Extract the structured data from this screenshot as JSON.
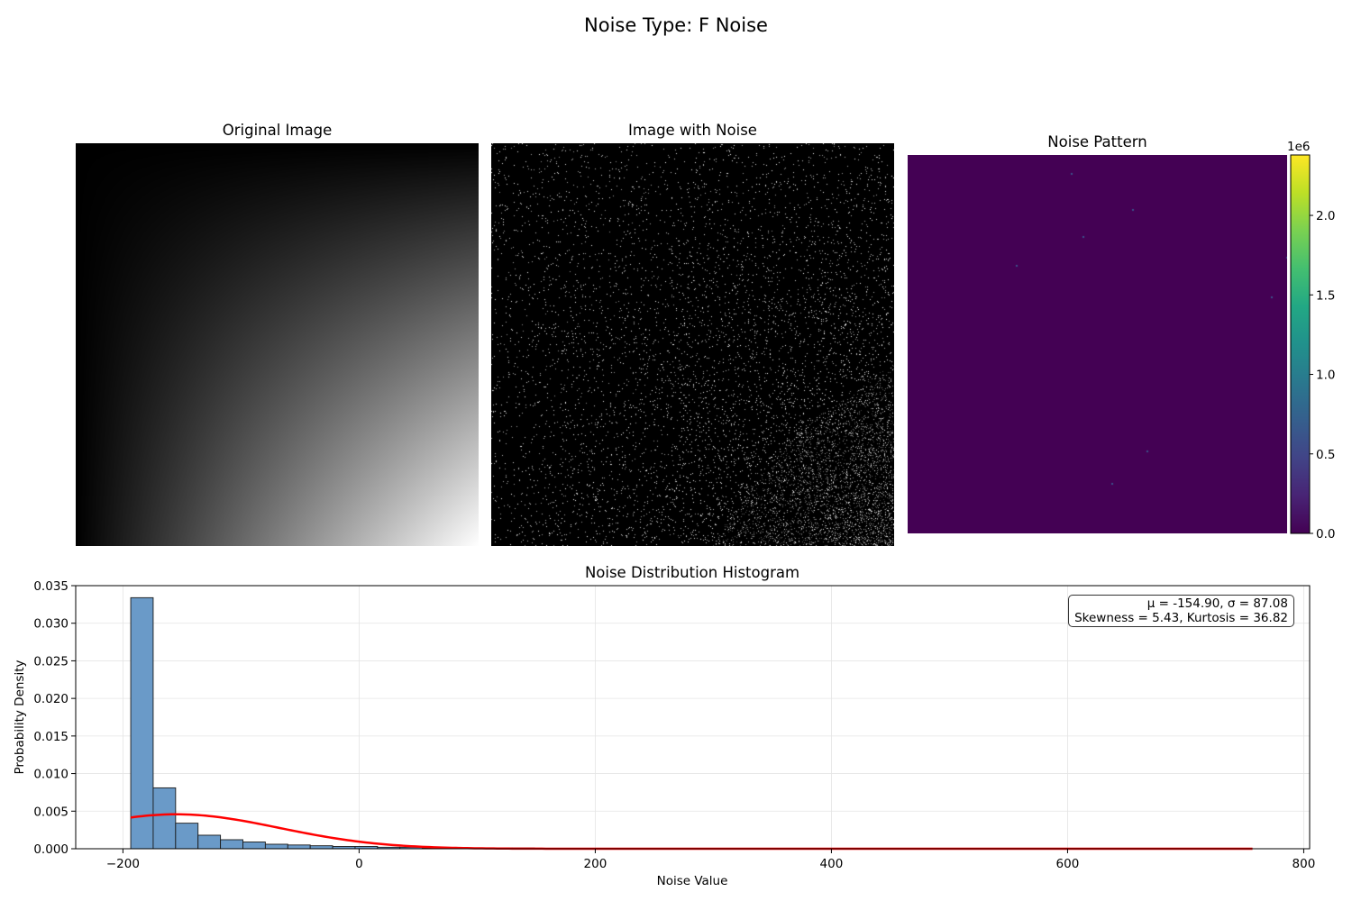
{
  "figure": {
    "suptitle": "Noise Type: F Noise"
  },
  "panels": {
    "original": {
      "title": "Original Image"
    },
    "noisy": {
      "title": "Image with Noise"
    },
    "pattern": {
      "title": "Noise Pattern",
      "colormap": "viridis",
      "colorbar": {
        "exponent_label": "1e6",
        "ticks": [
          {
            "value": 0.0,
            "label": "0.0"
          },
          {
            "value": 0.5,
            "label": "0.5"
          },
          {
            "value": 1.0,
            "label": "1.0"
          },
          {
            "value": 1.5,
            "label": "1.5"
          },
          {
            "value": 2.0,
            "label": "2.0"
          }
        ],
        "range": [
          0,
          2.38
        ]
      }
    }
  },
  "chart_data": {
    "type": "bar",
    "title": "Noise Distribution Histogram",
    "xlabel": "Noise Value",
    "ylabel": "Probability Density",
    "xlim": [
      -240,
      805
    ],
    "ylim": [
      0,
      0.035
    ],
    "grid": true,
    "x_ticks": [
      {
        "value": -200,
        "label": "−200"
      },
      {
        "value": 0,
        "label": "0"
      },
      {
        "value": 200,
        "label": "200"
      },
      {
        "value": 400,
        "label": "400"
      },
      {
        "value": 600,
        "label": "600"
      },
      {
        "value": 800,
        "label": "800"
      }
    ],
    "y_ticks": [
      {
        "value": 0.0,
        "label": "0.000"
      },
      {
        "value": 0.005,
        "label": "0.005"
      },
      {
        "value": 0.01,
        "label": "0.010"
      },
      {
        "value": 0.015,
        "label": "0.015"
      },
      {
        "value": 0.02,
        "label": "0.020"
      },
      {
        "value": 0.025,
        "label": "0.025"
      },
      {
        "value": 0.03,
        "label": "0.030"
      },
      {
        "value": 0.035,
        "label": "0.035"
      }
    ],
    "bins": {
      "start": -193.4,
      "width": 19.0,
      "density": [
        0.0334,
        0.0081,
        0.0034,
        0.0018,
        0.0012,
        0.0009,
        0.0006,
        0.0005,
        0.0004,
        0.0003,
        0.0003,
        0.0002,
        0.0002,
        0.0001,
        0.0001,
        0.0001,
        0.0001,
        0.0001,
        5e-05,
        5e-05,
        5e-05,
        4e-05,
        4e-05,
        3e-05,
        3e-05,
        3e-05,
        2e-05,
        2e-05,
        2e-05,
        2e-05,
        1e-05,
        1e-05,
        1e-05,
        1e-05,
        1e-05,
        1e-05,
        1e-05,
        1e-05,
        1e-05,
        1e-05,
        1e-05,
        1e-05,
        1e-05,
        1e-05,
        1e-05,
        1e-05,
        1e-05,
        1e-05,
        1e-05,
        1e-05
      ],
      "fill_color": "#6a9ac8",
      "edge_color": "#1a1a1a"
    },
    "fit_curve": {
      "kind": "normal",
      "mu": -154.9,
      "sigma": 87.08,
      "x_range": [
        -193.4,
        756.6
      ],
      "color": "#ff0000"
    },
    "stats_text": {
      "line1": "μ = -154.90, σ = 87.08",
      "line2": "Skewness = 5.43, Kurtosis = 36.82"
    }
  }
}
